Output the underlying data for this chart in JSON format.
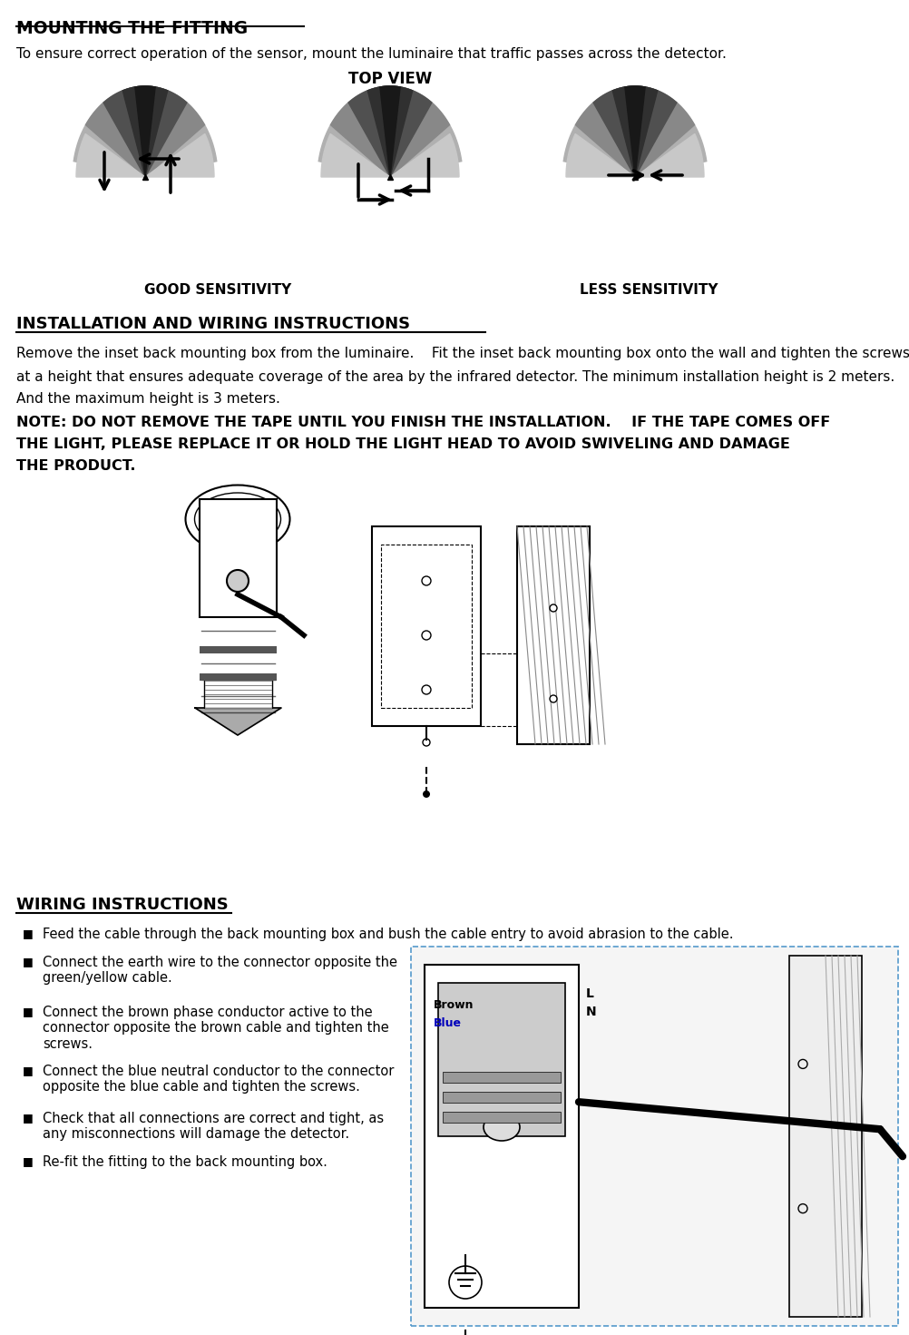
{
  "title": "MOUNTING THE FITTING",
  "subtitle": "To ensure correct operation of the sensor, mount the luminaire that traffic passes across the detector.",
  "top_view_label": "TOP VIEW",
  "good_sensitivity": "GOOD SENSITIVITY",
  "less_sensitivity": "LESS SENSITIVITY",
  "section2_title": "INSTALLATION AND WIRING INSTRUCTIONS",
  "section2_text1": "Remove the inset back mounting box from the luminaire.    Fit the inset back mounting box onto the wall and tighten the screws",
  "section2_text2": "at a height that ensures adequate coverage of the area by the infrared detector. The minimum installation height is 2 meters.",
  "section2_text3": "And the maximum height is 3 meters.",
  "note_text1": "NOTE: DO NOT REMOVE THE TAPE UNTIL YOU FINISH THE INSTALLATION.    IF THE TAPE COMES OFF",
  "note_text2": "THE LIGHT, PLEASE REPLACE IT OR HOLD THE LIGHT HEAD TO AVOID SWIVELING AND DAMAGE",
  "note_text3": "THE PRODUCT.",
  "section3_title": "WIRING INSTRUCTIONS",
  "bullet1": "Feed the cable through the back mounting box and bush the cable entry to avoid abrasion to the cable.",
  "bullet2": "Connect the earth wire to the connector opposite the\ngreen/yellow cable.",
  "bullet3": "Connect the brown phase conductor active to the\nconnector opposite the brown cable and tighten the\nscrews.",
  "bullet4": "Connect the blue neutral conductor to the connector\nopposite the blue cable and tighten the screws.",
  "bullet5": "Check that all connections are correct and tight, as\nany misconnections will damage the detector.",
  "bullet6": "Re-fit the fitting to the back mounting box.",
  "wiring_label_brown": "Brown",
  "wiring_label_blue": "Blue",
  "wiring_label_L": "L",
  "wiring_label_N": "N",
  "bg_color": "#ffffff",
  "text_color": "#000000",
  "border_color": "#4a90d9"
}
